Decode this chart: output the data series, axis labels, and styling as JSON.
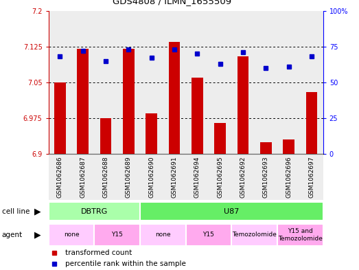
{
  "title": "GDS4808 / ILMN_1655509",
  "samples": [
    "GSM1062686",
    "GSM1062687",
    "GSM1062688",
    "GSM1062689",
    "GSM1062690",
    "GSM1062691",
    "GSM1062694",
    "GSM1062695",
    "GSM1062692",
    "GSM1062693",
    "GSM1062696",
    "GSM1062697"
  ],
  "transformed_count": [
    7.05,
    7.12,
    6.975,
    7.12,
    6.985,
    7.135,
    7.06,
    6.965,
    7.105,
    6.925,
    6.93,
    7.03
  ],
  "percentile_rank": [
    68,
    72,
    65,
    73,
    67,
    73,
    70,
    63,
    71,
    60,
    61,
    68
  ],
  "ylim_left": [
    6.9,
    7.2
  ],
  "ylim_right": [
    0,
    100
  ],
  "yticks_left": [
    6.9,
    6.975,
    7.05,
    7.125,
    7.2
  ],
  "yticks_right": [
    0,
    25,
    50,
    75,
    100
  ],
  "bar_color": "#cc0000",
  "dot_color": "#0000cc",
  "cell_line_groups": [
    {
      "label": "DBTRG",
      "start": 0,
      "end": 3,
      "color": "#aaffaa"
    },
    {
      "label": "U87",
      "start": 4,
      "end": 11,
      "color": "#66ee66"
    }
  ],
  "agent_groups": [
    {
      "label": "none",
      "start": 0,
      "end": 1,
      "color": "#ffccff"
    },
    {
      "label": "Y15",
      "start": 2,
      "end": 3,
      "color": "#ffaaee"
    },
    {
      "label": "none",
      "start": 4,
      "end": 5,
      "color": "#ffccff"
    },
    {
      "label": "Y15",
      "start": 6,
      "end": 7,
      "color": "#ffaaee"
    },
    {
      "label": "Temozolomide",
      "start": 8,
      "end": 9,
      "color": "#ffccff"
    },
    {
      "label": "Y15 and\nTemozolomide",
      "start": 10,
      "end": 11,
      "color": "#ffaaee"
    }
  ],
  "legend_bar_label": "transformed count",
  "legend_dot_label": "percentile rank within the sample"
}
